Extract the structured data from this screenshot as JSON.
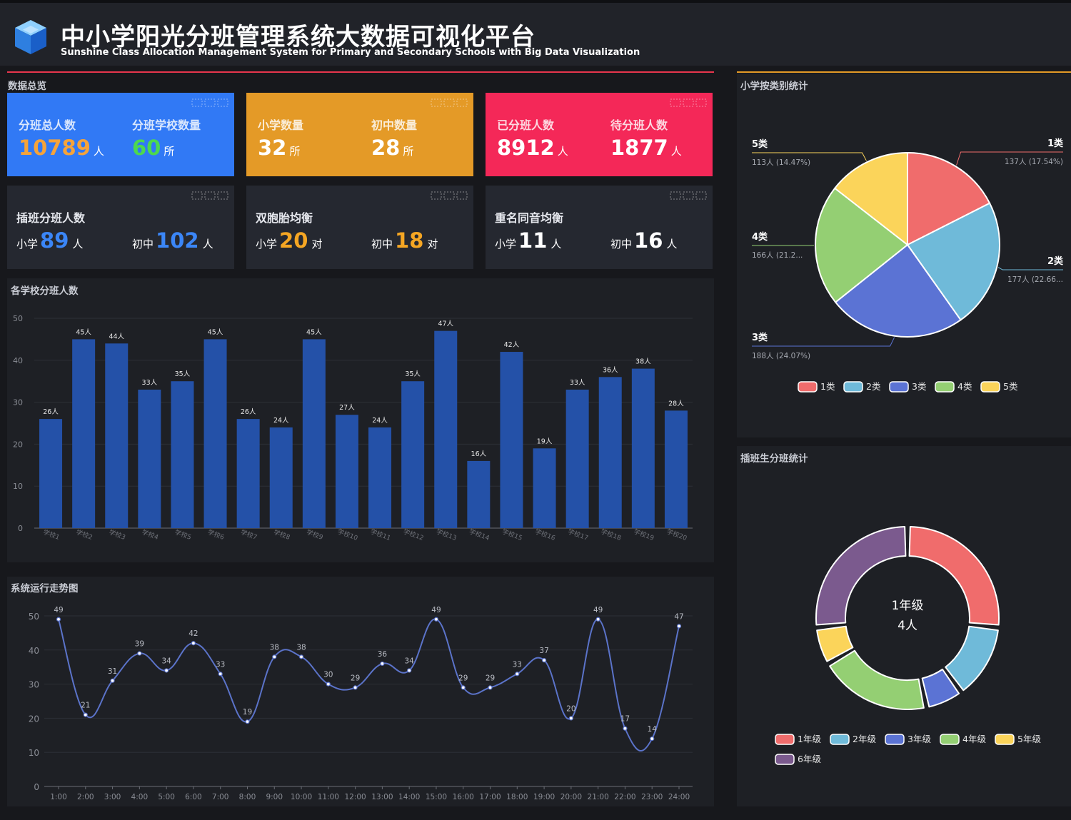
{
  "header": {
    "title_cn": "中小学阳光分班管理系统大数据可视化平台",
    "title_en": "Sunshine Class Allocation Management System for Primary and Secondary Schools with Big Data Visualization"
  },
  "overview": {
    "title": "数据总览",
    "cards": [
      {
        "color": "#3179f5",
        "items": [
          {
            "label": "分班总人数",
            "value": "10789",
            "unit": "人",
            "value_color": "#f5a33a"
          },
          {
            "label": "分班学校数量",
            "value": "60",
            "unit": "所",
            "value_color": "#4dd84f"
          }
        ]
      },
      {
        "color": "#e49a27",
        "items": [
          {
            "label": "小学数量",
            "value": "32",
            "unit": "所",
            "value_color": "#ffffff"
          },
          {
            "label": "初中数量",
            "value": "28",
            "unit": "所",
            "value_color": "#ffffff"
          }
        ]
      },
      {
        "color": "#f42858",
        "items": [
          {
            "label": "已分班人数",
            "value": "8912",
            "unit": "人",
            "value_color": "#ffffff"
          },
          {
            "label": "待分班人数",
            "value": "1877",
            "unit": "人",
            "value_color": "#ffffff"
          }
        ]
      }
    ],
    "detail_cards": [
      {
        "label": "插班分班人数",
        "value_color": "#3b86f7",
        "items": [
          {
            "prefix": "小学",
            "value": "89",
            "unit": "人"
          },
          {
            "prefix": "初中",
            "value": "102",
            "unit": "人"
          }
        ]
      },
      {
        "label": "双胞胎均衡",
        "value_color": "#f5a623",
        "items": [
          {
            "prefix": "小学",
            "value": "20",
            "unit": "对"
          },
          {
            "prefix": "初中",
            "value": "18",
            "unit": "对"
          }
        ]
      },
      {
        "label": "重名同音均衡",
        "value_color": "#ffffff",
        "items": [
          {
            "prefix": "小学",
            "value": "11",
            "unit": "人"
          },
          {
            "prefix": "初中",
            "value": "16",
            "unit": "人"
          }
        ]
      }
    ]
  },
  "bar_panel_title": "各学校分班人数",
  "line_panel_title": "系统运行走势图",
  "pie_panel_title": "小学按类别统计",
  "donut_panel_title": "插班生分班统计",
  "chart_data": [
    {
      "type": "bar",
      "categories": [
        "学校1",
        "学校2",
        "学校3",
        "学校4",
        "学校5",
        "学校6",
        "学校7",
        "学校8",
        "学校9",
        "学校10",
        "学校11",
        "学校12",
        "学校13",
        "学校14",
        "学校15",
        "学校16",
        "学校17",
        "学校18",
        "学校19",
        "学校20"
      ],
      "values": [
        26,
        45,
        44,
        33,
        35,
        45,
        26,
        24,
        45,
        27,
        24,
        35,
        47,
        16,
        42,
        19,
        33,
        36,
        38,
        28
      ],
      "value_suffix": "人",
      "ylim": [
        0,
        50
      ],
      "yticks": [
        0,
        10,
        20,
        30,
        40,
        50
      ],
      "color": "#2451a8"
    },
    {
      "type": "line",
      "categories": [
        "1:00",
        "2:00",
        "3:00",
        "4:00",
        "5:00",
        "6:00",
        "7:00",
        "8:00",
        "9:00",
        "10:00",
        "11:00",
        "12:00",
        "13:00",
        "14:00",
        "15:00",
        "16:00",
        "17:00",
        "18:00",
        "19:00",
        "20:00",
        "21:00",
        "22:00",
        "23:00",
        "24:00"
      ],
      "values": [
        49,
        21,
        31,
        39,
        34,
        42,
        33,
        19,
        38,
        38,
        30,
        29,
        36,
        34,
        49,
        29,
        29,
        33,
        37,
        20,
        49,
        17,
        14,
        47
      ],
      "ylim": [
        0,
        50
      ],
      "yticks": [
        0,
        10,
        20,
        30,
        40,
        50
      ],
      "color": "#5b73c9"
    },
    {
      "type": "pie",
      "slices": [
        {
          "name": "1类",
          "value": 137,
          "label": "137人 (17.54%)",
          "color": "#f06c6c"
        },
        {
          "name": "2类",
          "value": 177,
          "label": "177人 (22.66...",
          "color": "#6fbad9"
        },
        {
          "name": "3类",
          "value": 188,
          "label": "188人 (24.07%)",
          "color": "#5b73d4"
        },
        {
          "name": "4类",
          "value": 166,
          "label": "166人 (21.2...",
          "color": "#94cf73"
        },
        {
          "name": "5类",
          "value": 113,
          "label": "113人 (14.47%)",
          "color": "#fbd45a"
        }
      ],
      "legend": [
        "1类",
        "2类",
        "3类",
        "4类",
        "5类"
      ]
    },
    {
      "type": "pie",
      "variant": "donut",
      "center_title": "1年级",
      "center_value": "4人",
      "slices": [
        {
          "name": "1年级",
          "value": 4,
          "color": "#f06c6c"
        },
        {
          "name": "2年级",
          "value": 2,
          "color": "#6fbad9"
        },
        {
          "name": "3年级",
          "value": 1,
          "color": "#5b73d4"
        },
        {
          "name": "4年级",
          "value": 3,
          "color": "#94cf73"
        },
        {
          "name": "5年级",
          "value": 1,
          "color": "#fbd45a"
        },
        {
          "name": "6年级",
          "value": 4,
          "color": "#7b5a8e"
        }
      ],
      "legend": [
        "1年级",
        "2年级",
        "3年级",
        "4年级",
        "5年级",
        "6年级"
      ]
    }
  ]
}
